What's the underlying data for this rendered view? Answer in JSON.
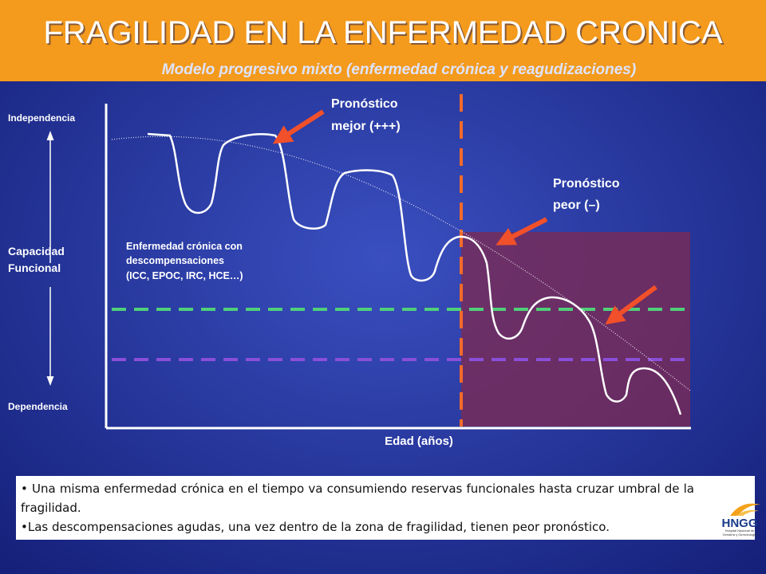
{
  "header": {
    "title": "FRAGILIDAD EN LA ENFERMEDAD CRONICA",
    "subtitle": "Modelo progresivo mixto (enfermedad crónica y reagudizaciones)"
  },
  "diagram": {
    "y_axis": {
      "top": "Independencia",
      "middle": [
        "Capacidad",
        "Funcional"
      ],
      "bottom": "Dependencia"
    },
    "x_axis": "Edad (años)",
    "annotations": {
      "better": [
        "Pronóstico",
        "mejor (+++)"
      ],
      "worse": [
        "Pronóstico",
        "peor (–)"
      ],
      "chronic": [
        "Enfermedad crónica con",
        "descompensaciones",
        "(ICC, EPOC, IRC, HCE…)"
      ]
    }
  },
  "notes": [
    "Una misma enfermedad crónica en el tiempo va consumiendo reservas funcionales hasta cruzar umbral de la fragilidad.",
    "Las descompensaciones agudas, una vez dentro de la zona de fragilidad, tienen peor pronóstico."
  ],
  "logo": {
    "name": "HNGG",
    "caption": [
      "Hospital Nacional de",
      "Geriatría y Gerontología"
    ]
  }
}
